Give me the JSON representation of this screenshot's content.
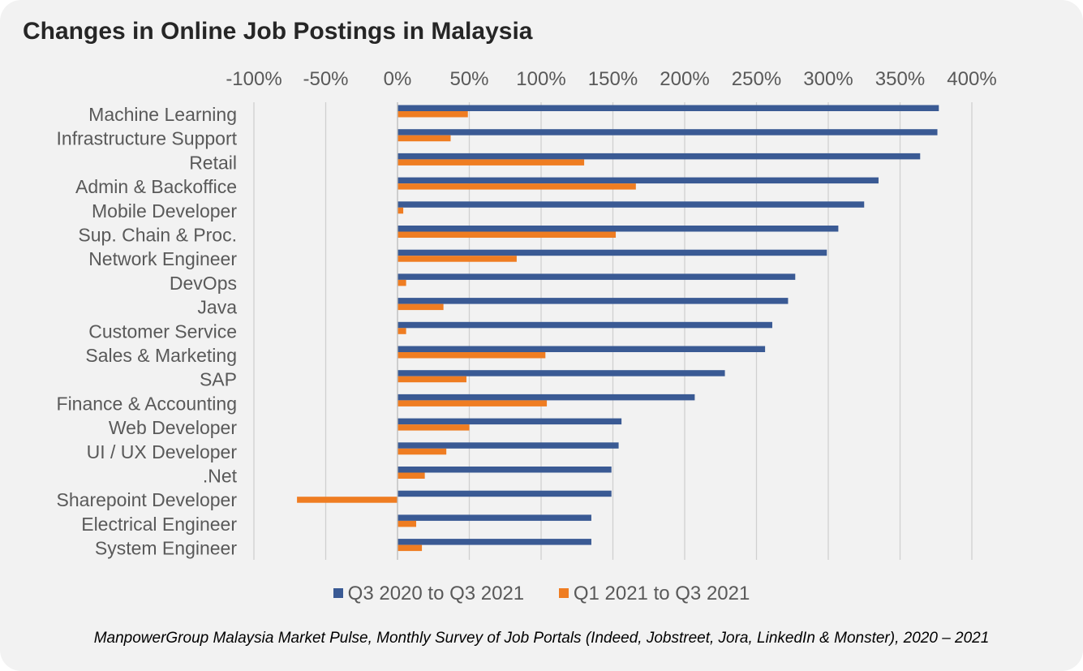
{
  "title": "Changes in Online Job Postings in Malaysia",
  "source": "ManpowerGroup Malaysia Market Pulse, Monthly Survey of Job Portals (Indeed, Jobstreet, Jora, LinkedIn & Monster), 2020 – 2021",
  "colors": {
    "series1": "#3a5a94",
    "series2": "#ef7d22",
    "background": "#f2f2f2",
    "grid": "#d0d0d0",
    "text": "#595959"
  },
  "chart_data": {
    "type": "bar",
    "orientation": "horizontal",
    "title": "Changes in Online Job Postings in Malaysia",
    "xlim": [
      -100,
      400
    ],
    "xticks": [
      "-100%",
      "-50%",
      "0%",
      "50%",
      "100%",
      "150%",
      "200%",
      "250%",
      "300%",
      "350%",
      "400%"
    ],
    "x_axis_position": "top",
    "grid": true,
    "legend_position": "bottom",
    "categories": [
      "Machine Learning",
      "Infrastructure Support",
      "Retail",
      "Admin & Backoffice",
      "Mobile Developer",
      "Sup. Chain & Proc.",
      "Network Engineer",
      "DevOps",
      "Java",
      "Customer Service",
      "Sales & Marketing",
      "SAP",
      "Finance & Accounting",
      "Web Developer",
      "UI / UX Developer",
      ".Net",
      "Sharepoint Developer",
      "Electrical Engineer",
      "System Engineer"
    ],
    "series": [
      {
        "name": "Q3 2020 to Q3 2021",
        "values": [
          377,
          376,
          364,
          335,
          325,
          307,
          299,
          277,
          272,
          261,
          256,
          228,
          207,
          156,
          154,
          149,
          149,
          135,
          135
        ]
      },
      {
        "name": "Q1 2021 to Q3 2021",
        "values": [
          49,
          37,
          130,
          166,
          4,
          152,
          83,
          6,
          32,
          6,
          103,
          48,
          104,
          50,
          34,
          19,
          -70,
          13,
          17
        ]
      }
    ]
  }
}
